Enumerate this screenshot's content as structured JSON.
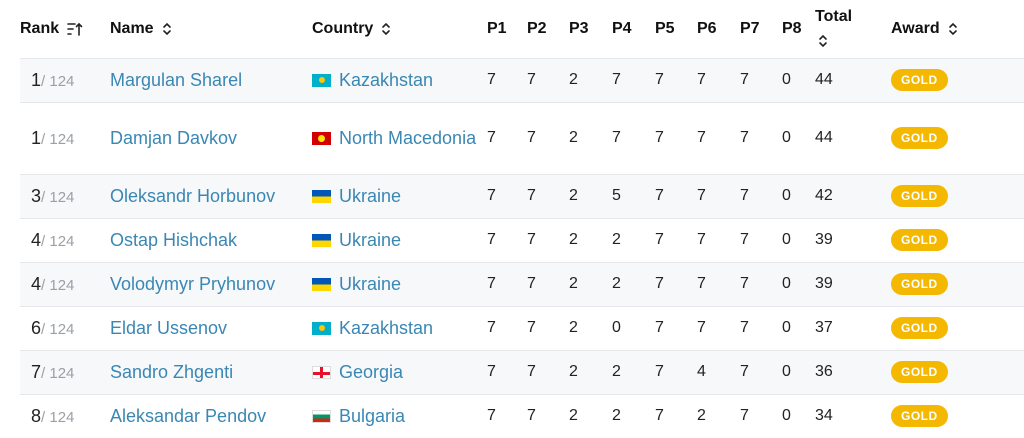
{
  "header": {
    "rank": "Rank",
    "name": "Name",
    "country": "Country",
    "p1": "P1",
    "p2": "P2",
    "p3": "P3",
    "p4": "P4",
    "p5": "P5",
    "p6": "P6",
    "p7": "P7",
    "p8": "P8",
    "total": "Total",
    "award": "Award"
  },
  "rows": [
    {
      "rank": "1",
      "of": "/ 124",
      "name": "Margulan Sharel",
      "country": "Kazakhstan",
      "flag": "kz",
      "scores": [
        "7",
        "7",
        "2",
        "7",
        "7",
        "7",
        "7",
        "0"
      ],
      "total": "44",
      "award": "GOLD"
    },
    {
      "rank": "1",
      "of": "/ 124",
      "name": "Damjan Davkov",
      "country": "North Macedonia",
      "flag": "mk",
      "scores": [
        "7",
        "7",
        "2",
        "7",
        "7",
        "7",
        "7",
        "0"
      ],
      "total": "44",
      "award": "GOLD"
    },
    {
      "rank": "3",
      "of": "/ 124",
      "name": "Oleksandr Horbunov",
      "country": "Ukraine",
      "flag": "ua",
      "scores": [
        "7",
        "7",
        "2",
        "5",
        "7",
        "7",
        "7",
        "0"
      ],
      "total": "42",
      "award": "GOLD"
    },
    {
      "rank": "4",
      "of": "/ 124",
      "name": "Ostap Hishchak",
      "country": "Ukraine",
      "flag": "ua",
      "scores": [
        "7",
        "7",
        "2",
        "2",
        "7",
        "7",
        "7",
        "0"
      ],
      "total": "39",
      "award": "GOLD"
    },
    {
      "rank": "4",
      "of": "/ 124",
      "name": "Volodymyr Pryhunov",
      "country": "Ukraine",
      "flag": "ua",
      "scores": [
        "7",
        "7",
        "2",
        "2",
        "7",
        "7",
        "7",
        "0"
      ],
      "total": "39",
      "award": "GOLD"
    },
    {
      "rank": "6",
      "of": "/ 124",
      "name": "Eldar Ussenov",
      "country": "Kazakhstan",
      "flag": "kz",
      "scores": [
        "7",
        "7",
        "2",
        "0",
        "7",
        "7",
        "7",
        "0"
      ],
      "total": "37",
      "award": "GOLD"
    },
    {
      "rank": "7",
      "of": "/ 124",
      "name": "Sandro Zhgenti",
      "country": "Georgia",
      "flag": "ge",
      "scores": [
        "7",
        "7",
        "2",
        "2",
        "7",
        "4",
        "7",
        "0"
      ],
      "total": "36",
      "award": "GOLD"
    },
    {
      "rank": "8",
      "of": "/ 124",
      "name": "Aleksandar Pendov",
      "country": "Bulgaria",
      "flag": "bg",
      "scores": [
        "7",
        "7",
        "2",
        "2",
        "7",
        "2",
        "7",
        "0"
      ],
      "total": "34",
      "award": "GOLD"
    }
  ],
  "colors": {
    "link": "#3a87b4",
    "gold_badge": "#f5b800",
    "stripe": "#f6f8fa"
  }
}
